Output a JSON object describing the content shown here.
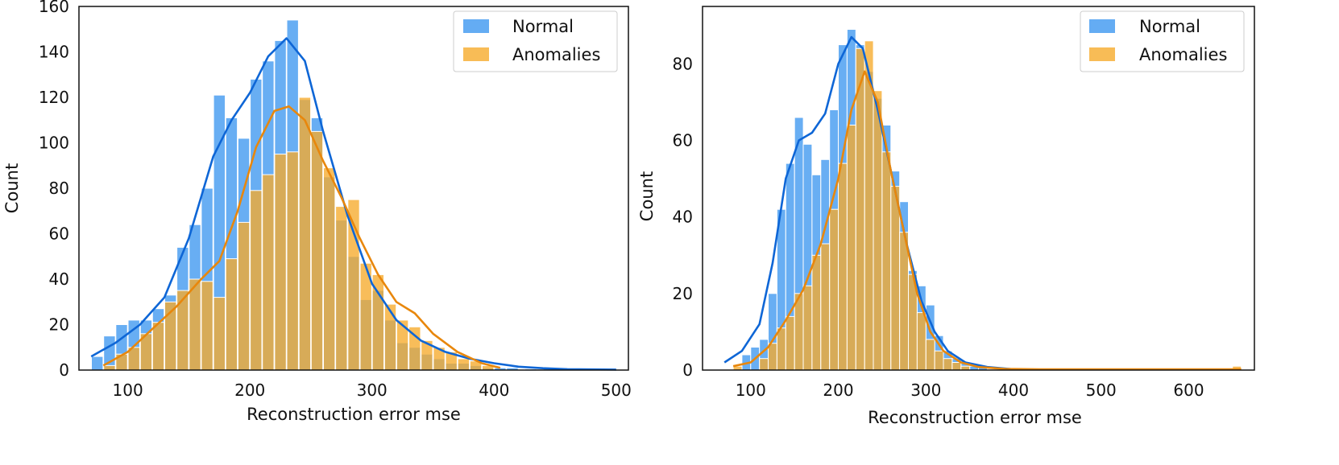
{
  "chart_data": [
    {
      "type": "bar",
      "xlabel": "Reconstruction error mse",
      "ylabel": "Count",
      "xlim": [
        60,
        510
      ],
      "ylim": [
        0,
        160
      ],
      "xticks": [
        100,
        200,
        300,
        400,
        500
      ],
      "yticks": [
        0,
        20,
        40,
        60,
        80,
        100,
        120,
        140,
        160
      ],
      "grid": false,
      "legend": "top-right",
      "bin_width": 9.5,
      "series": [
        {
          "name": "Normal",
          "color": "#3d97f0",
          "line_color": "#0e66d6",
          "bins": [
            [
              75,
              6
            ],
            [
              85,
              15
            ],
            [
              95,
              20
            ],
            [
              105,
              22
            ],
            [
              115,
              22
            ],
            [
              125,
              27
            ],
            [
              135,
              33
            ],
            [
              145,
              54
            ],
            [
              155,
              64
            ],
            [
              165,
              80
            ],
            [
              175,
              121
            ],
            [
              185,
              111
            ],
            [
              195,
              102
            ],
            [
              205,
              128
            ],
            [
              215,
              136
            ],
            [
              225,
              145
            ],
            [
              235,
              154
            ],
            [
              245,
              119
            ],
            [
              255,
              111
            ],
            [
              265,
              85
            ],
            [
              275,
              66
            ],
            [
              285,
              50
            ],
            [
              295,
              31
            ],
            [
              305,
              35
            ],
            [
              315,
              22
            ],
            [
              325,
              12
            ],
            [
              335,
              10
            ],
            [
              345,
              7
            ],
            [
              355,
              5
            ],
            [
              365,
              3
            ],
            [
              375,
              3
            ],
            [
              385,
              2
            ],
            [
              395,
              1
            ],
            [
              405,
              1
            ],
            [
              415,
              1
            ],
            [
              430,
              0.5
            ],
            [
              445,
              0.5
            ],
            [
              495,
              0.5
            ]
          ],
          "kde": [
            [
              70,
              6
            ],
            [
              90,
              12
            ],
            [
              110,
              20
            ],
            [
              130,
              32
            ],
            [
              150,
              58
            ],
            [
              170,
              94
            ],
            [
              185,
              110
            ],
            [
              200,
              122
            ],
            [
              215,
              138
            ],
            [
              230,
              146
            ],
            [
              245,
              136
            ],
            [
              260,
              105
            ],
            [
              280,
              68
            ],
            [
              300,
              38
            ],
            [
              320,
              22
            ],
            [
              340,
              13
            ],
            [
              360,
              8
            ],
            [
              380,
              5
            ],
            [
              400,
              3
            ],
            [
              420,
              1.5
            ],
            [
              440,
              0.8
            ],
            [
              460,
              0.4
            ],
            [
              500,
              0.2
            ]
          ]
        },
        {
          "name": "Anomalies",
          "color": "#f6ab2c",
          "line_color": "#e8870c",
          "bins": [
            [
              85,
              2
            ],
            [
              95,
              7
            ],
            [
              105,
              10
            ],
            [
              115,
              16
            ],
            [
              125,
              21
            ],
            [
              135,
              30
            ],
            [
              145,
              35
            ],
            [
              155,
              40
            ],
            [
              165,
              39
            ],
            [
              175,
              32
            ],
            [
              185,
              49
            ],
            [
              195,
              65
            ],
            [
              205,
              79
            ],
            [
              215,
              86
            ],
            [
              225,
              95
            ],
            [
              235,
              96
            ],
            [
              245,
              120
            ],
            [
              255,
              105
            ],
            [
              265,
              89
            ],
            [
              275,
              72
            ],
            [
              285,
              75
            ],
            [
              295,
              47
            ],
            [
              305,
              42
            ],
            [
              315,
              29
            ],
            [
              325,
              22
            ],
            [
              335,
              19
            ],
            [
              345,
              13
            ],
            [
              355,
              10
            ],
            [
              365,
              8
            ],
            [
              375,
              5
            ],
            [
              385,
              4
            ],
            [
              395,
              2
            ]
          ],
          "kde": [
            [
              80,
              2
            ],
            [
              100,
              8
            ],
            [
              120,
              18
            ],
            [
              140,
              28
            ],
            [
              160,
              40
            ],
            [
              175,
              48
            ],
            [
              190,
              70
            ],
            [
              205,
              98
            ],
            [
              220,
              114
            ],
            [
              232,
              116
            ],
            [
              245,
              110
            ],
            [
              260,
              92
            ],
            [
              275,
              76
            ],
            [
              290,
              58
            ],
            [
              305,
              42
            ],
            [
              320,
              30
            ],
            [
              335,
              25
            ],
            [
              350,
              16
            ],
            [
              370,
              8
            ],
            [
              390,
              3
            ],
            [
              405,
              1
            ]
          ]
        }
      ]
    },
    {
      "type": "bar",
      "xlabel": "Reconstruction error mse",
      "ylabel": "Count",
      "xlim": [
        45,
        675
      ],
      "ylim": [
        0,
        95
      ],
      "xticks": [
        100,
        200,
        300,
        400,
        500,
        600
      ],
      "yticks": [
        0,
        20,
        40,
        60,
        80
      ],
      "grid": false,
      "legend": "top-right",
      "bin_width": 10,
      "series": [
        {
          "name": "Normal",
          "color": "#3d97f0",
          "line_color": "#0e66d6",
          "bins": [
            [
              95,
              4
            ],
            [
              105,
              6
            ],
            [
              115,
              8
            ],
            [
              125,
              20
            ],
            [
              135,
              42
            ],
            [
              145,
              54
            ],
            [
              155,
              66
            ],
            [
              165,
              59
            ],
            [
              175,
              51
            ],
            [
              185,
              55
            ],
            [
              195,
              68
            ],
            [
              205,
              85
            ],
            [
              215,
              89
            ],
            [
              225,
              85
            ],
            [
              235,
              78
            ],
            [
              245,
              71
            ],
            [
              255,
              64
            ],
            [
              265,
              52
            ],
            [
              275,
              44
            ],
            [
              285,
              26
            ],
            [
              295,
              22
            ],
            [
              305,
              17
            ],
            [
              315,
              9
            ],
            [
              325,
              5
            ],
            [
              335,
              3
            ],
            [
              345,
              2
            ],
            [
              355,
              1
            ],
            [
              365,
              1
            ]
          ],
          "kde": [
            [
              70,
              2
            ],
            [
              90,
              5
            ],
            [
              110,
              12
            ],
            [
              125,
              28
            ],
            [
              140,
              50
            ],
            [
              155,
              60
            ],
            [
              170,
              62
            ],
            [
              185,
              67
            ],
            [
              200,
              80
            ],
            [
              215,
              87
            ],
            [
              228,
              84
            ],
            [
              245,
              68
            ],
            [
              262,
              50
            ],
            [
              278,
              33
            ],
            [
              295,
              18
            ],
            [
              310,
              10
            ],
            [
              325,
              5
            ],
            [
              345,
              2
            ],
            [
              370,
              0.8
            ],
            [
              400,
              0.2
            ]
          ]
        },
        {
          "name": "Anomalies",
          "color": "#f6ab2c",
          "line_color": "#e8870c",
          "bins": [
            [
              85,
              1
            ],
            [
              115,
              3
            ],
            [
              125,
              7
            ],
            [
              135,
              11
            ],
            [
              145,
              14
            ],
            [
              155,
              20
            ],
            [
              165,
              22
            ],
            [
              175,
              30
            ],
            [
              185,
              33
            ],
            [
              195,
              42
            ],
            [
              205,
              54
            ],
            [
              215,
              64
            ],
            [
              225,
              84
            ],
            [
              235,
              86
            ],
            [
              245,
              73
            ],
            [
              255,
              57
            ],
            [
              265,
              48
            ],
            [
              275,
              36
            ],
            [
              285,
              25
            ],
            [
              295,
              15
            ],
            [
              305,
              8
            ],
            [
              315,
              5
            ],
            [
              325,
              3
            ],
            [
              335,
              2
            ],
            [
              345,
              1
            ],
            [
              655,
              1
            ]
          ],
          "kde": [
            [
              80,
              1
            ],
            [
              100,
              2
            ],
            [
              120,
              6
            ],
            [
              140,
              13
            ],
            [
              160,
              21
            ],
            [
              180,
              33
            ],
            [
              200,
              50
            ],
            [
              215,
              68
            ],
            [
              230,
              78
            ],
            [
              245,
              70
            ],
            [
              260,
              52
            ],
            [
              275,
              36
            ],
            [
              290,
              20
            ],
            [
              305,
              10
            ],
            [
              320,
              5
            ],
            [
              340,
              2
            ],
            [
              360,
              0.8
            ],
            [
              390,
              0.3
            ],
            [
              430,
              0.2
            ],
            [
              660,
              0.2
            ]
          ]
        }
      ]
    }
  ]
}
